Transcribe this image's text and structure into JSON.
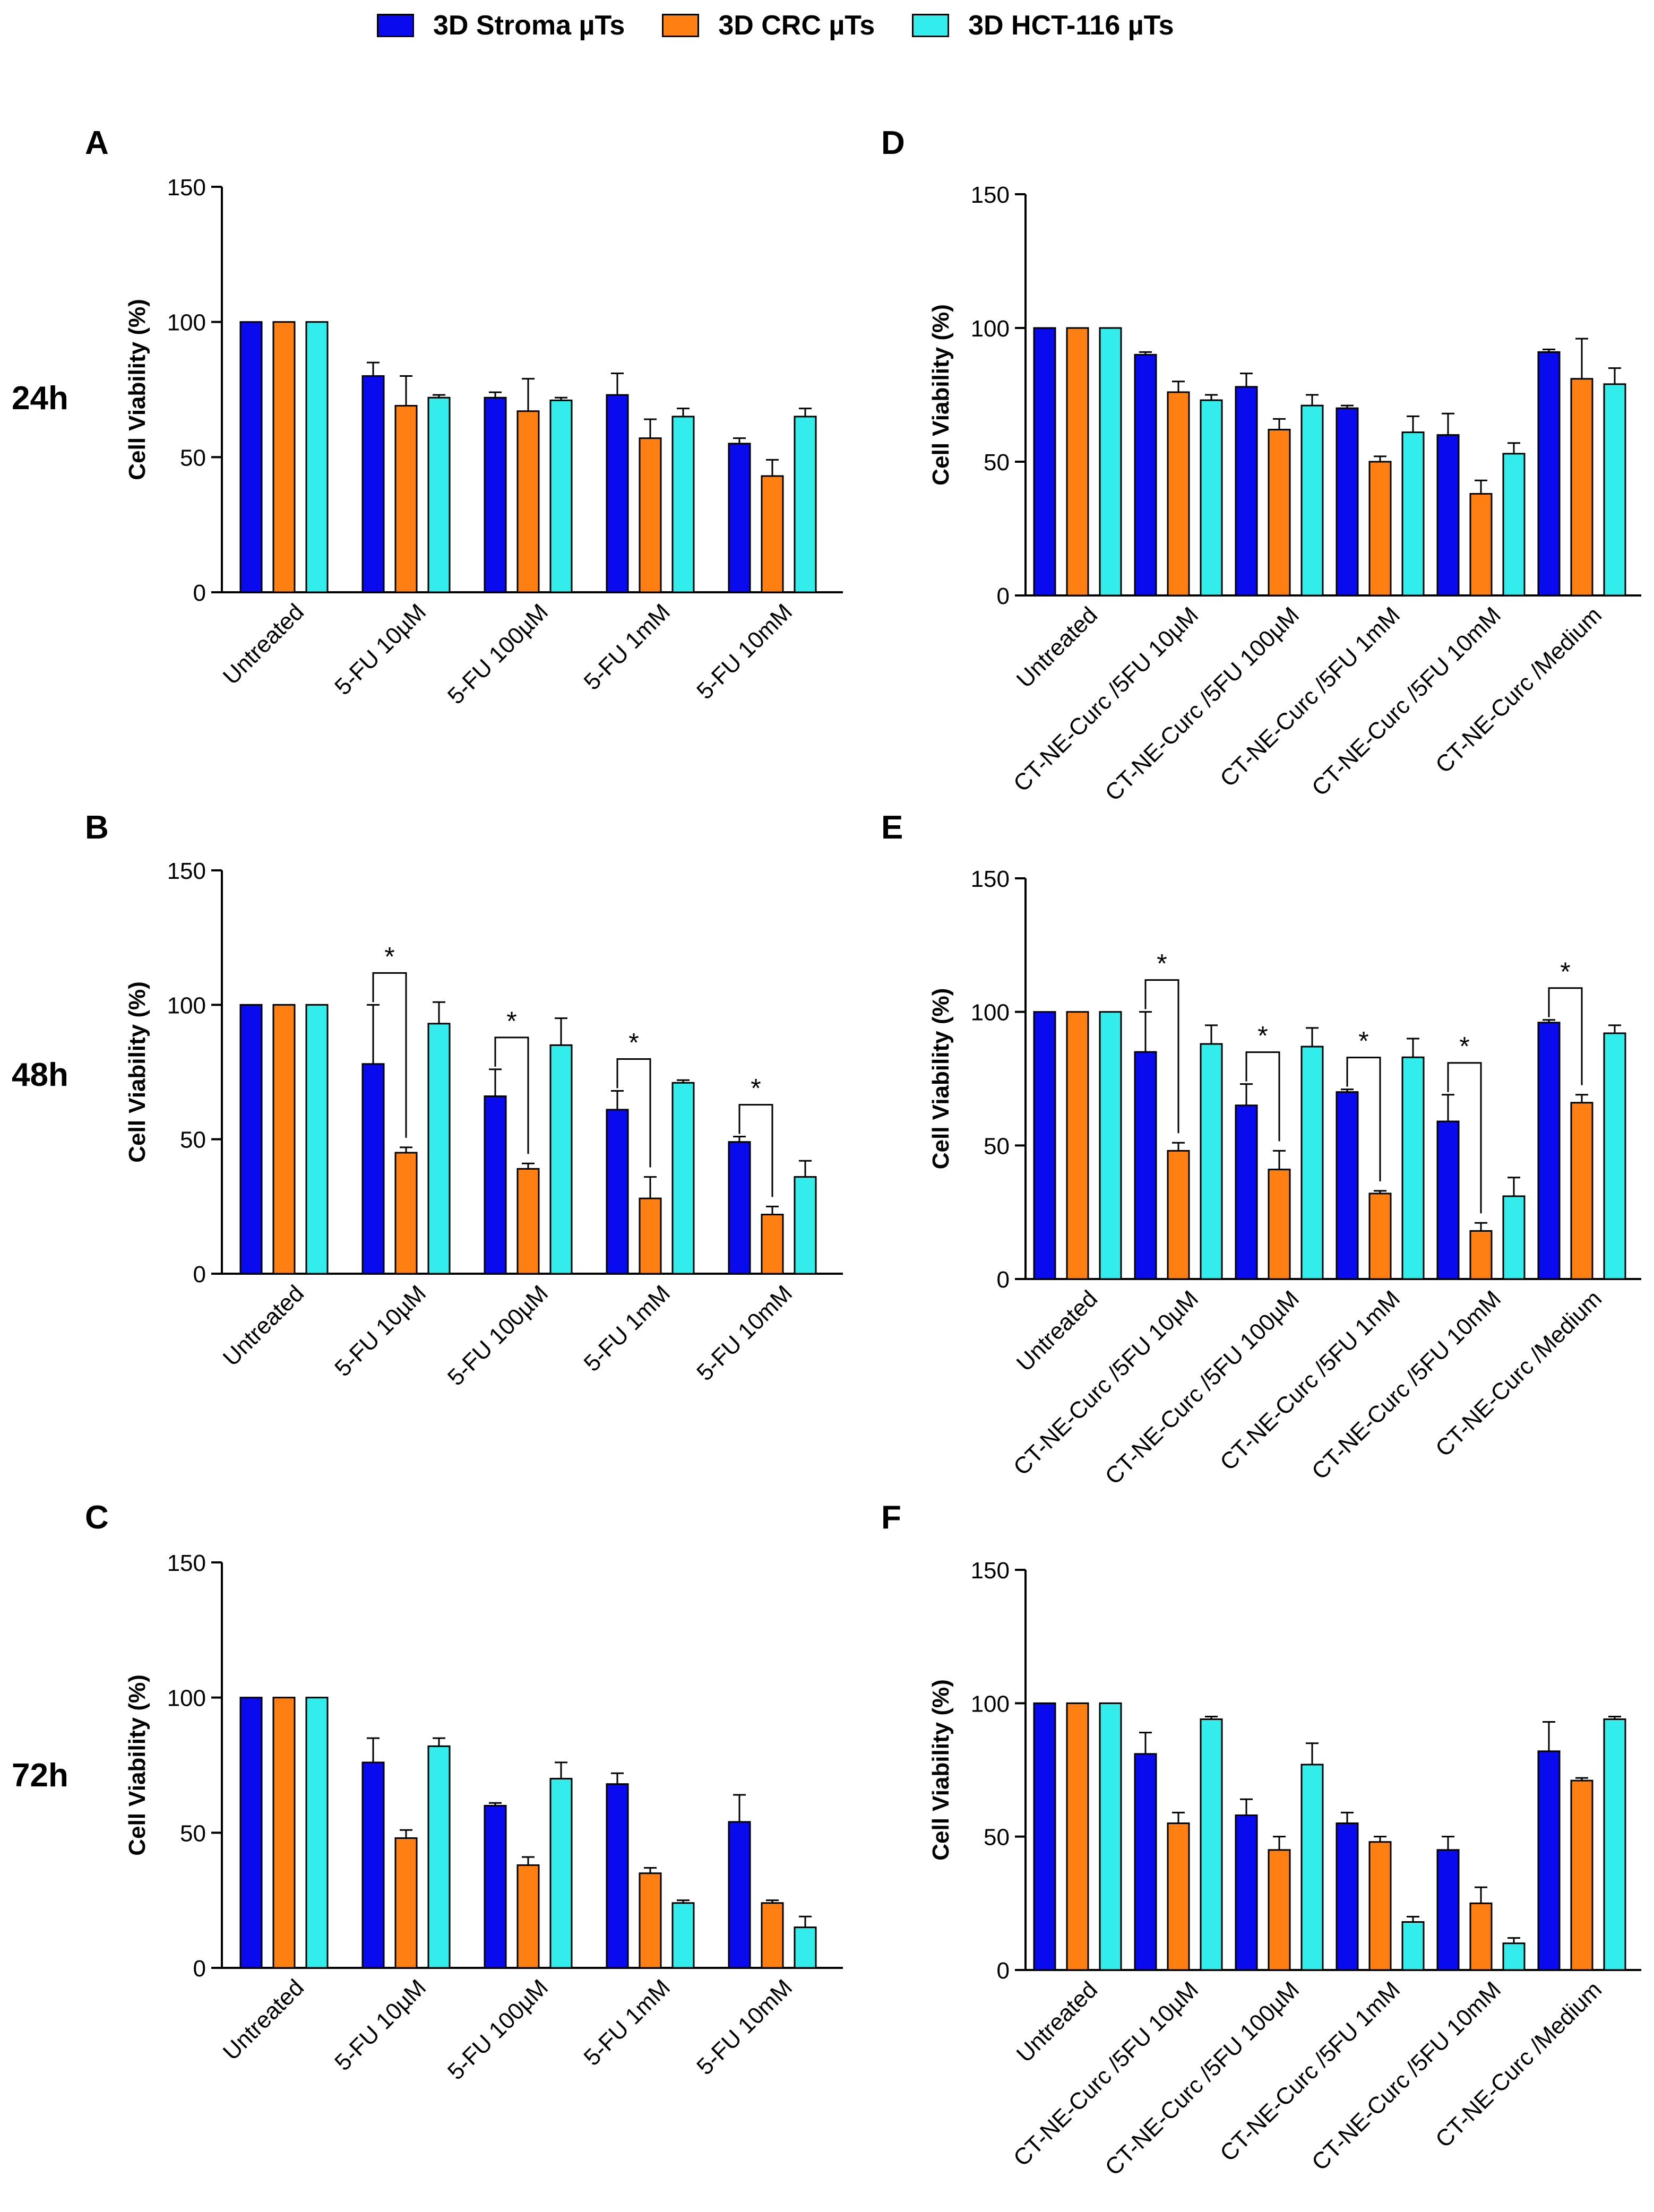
{
  "legend": [
    {
      "name": "3D Stroma µTs",
      "color": "#0a0aef"
    },
    {
      "name": "3D CRC µTs",
      "color": "#ff7f12"
    },
    {
      "name": "3D HCT-116 µTs",
      "color": "#33ecec"
    }
  ],
  "timepoints": [
    "24h",
    "48h",
    "72h"
  ],
  "chart_data": [
    {
      "panel": "A",
      "type": "bar",
      "ylabel": "Cell Viability (%)",
      "ylim": [
        0,
        150
      ],
      "yticks": [
        0,
        50,
        100,
        150
      ],
      "categories": [
        "Untreated",
        "5-FU 10µM",
        "5-FU 100µM",
        "5-FU 1mM",
        "5-FU 10mM"
      ],
      "series": [
        {
          "name": "3D Stroma µTs",
          "values": [
            100,
            80,
            72,
            73,
            55
          ],
          "errors": [
            0,
            5,
            2,
            8,
            2
          ]
        },
        {
          "name": "3D CRC µTs",
          "values": [
            100,
            69,
            67,
            57,
            43
          ],
          "errors": [
            0,
            11,
            12,
            7,
            6
          ]
        },
        {
          "name": "3D HCT-116 µTs",
          "values": [
            100,
            72,
            71,
            65,
            65
          ],
          "errors": [
            0,
            1,
            1,
            3,
            3
          ]
        }
      ],
      "significance": []
    },
    {
      "panel": "B",
      "type": "bar",
      "ylabel": "Cell Viability (%)",
      "ylim": [
        0,
        150
      ],
      "yticks": [
        0,
        50,
        100,
        150
      ],
      "categories": [
        "Untreated",
        "5-FU 10µM",
        "5-FU 100µM",
        "5-FU 1mM",
        "5-FU 10mM"
      ],
      "series": [
        {
          "name": "3D Stroma µTs",
          "values": [
            100,
            78,
            66,
            61,
            49
          ],
          "errors": [
            0,
            22,
            10,
            7,
            2
          ]
        },
        {
          "name": "3D CRC µTs",
          "values": [
            100,
            45,
            39,
            28,
            22
          ],
          "errors": [
            0,
            2,
            2,
            8,
            3
          ]
        },
        {
          "name": "3D HCT-116 µTs",
          "values": [
            100,
            93,
            85,
            71,
            36
          ],
          "errors": [
            0,
            8,
            10,
            1,
            6
          ]
        }
      ],
      "significance": [
        {
          "group": 1,
          "label": "*"
        },
        {
          "group": 2,
          "label": "*"
        },
        {
          "group": 3,
          "label": "*"
        },
        {
          "group": 4,
          "label": "*"
        }
      ]
    },
    {
      "panel": "C",
      "type": "bar",
      "ylabel": "Cell Viability (%)",
      "ylim": [
        0,
        150
      ],
      "yticks": [
        0,
        50,
        100,
        150
      ],
      "categories": [
        "Untreated",
        "5-FU 10µM",
        "5-FU 100µM",
        "5-FU 1mM",
        "5-FU 10mM"
      ],
      "series": [
        {
          "name": "3D Stroma µTs",
          "values": [
            100,
            76,
            60,
            68,
            54
          ],
          "errors": [
            0,
            9,
            1,
            4,
            10
          ]
        },
        {
          "name": "3D CRC µTs",
          "values": [
            100,
            48,
            38,
            35,
            24
          ],
          "errors": [
            0,
            3,
            3,
            2,
            1
          ]
        },
        {
          "name": "3D HCT-116 µTs",
          "values": [
            100,
            82,
            70,
            24,
            15
          ],
          "errors": [
            0,
            3,
            6,
            1,
            4
          ]
        }
      ],
      "significance": []
    },
    {
      "panel": "D",
      "type": "bar",
      "ylabel": "Cell Viability (%)",
      "ylim": [
        0,
        150
      ],
      "yticks": [
        0,
        50,
        100,
        150
      ],
      "categories": [
        "Untreated",
        "CT-NE-Curc /5FU 10µM",
        "CT-NE-Curc /5FU 100µM",
        "CT-NE-Curc /5FU 1mM",
        "CT-NE-Curc /5FU 10mM",
        "CT-NE-Curc /Medium"
      ],
      "series": [
        {
          "name": "3D Stroma µTs",
          "values": [
            100,
            90,
            78,
            70,
            60,
            91
          ],
          "errors": [
            0,
            1,
            5,
            1,
            8,
            1
          ]
        },
        {
          "name": "3D CRC µTs",
          "values": [
            100,
            76,
            62,
            50,
            38,
            81
          ],
          "errors": [
            0,
            4,
            4,
            2,
            5,
            15
          ]
        },
        {
          "name": "3D HCT-116 µTs",
          "values": [
            100,
            73,
            71,
            61,
            53,
            79
          ],
          "errors": [
            0,
            2,
            4,
            6,
            4,
            6
          ]
        }
      ],
      "significance": []
    },
    {
      "panel": "E",
      "type": "bar",
      "ylabel": "Cell Viability (%)",
      "ylim": [
        0,
        150
      ],
      "yticks": [
        0,
        50,
        100,
        150
      ],
      "categories": [
        "Untreated",
        "CT-NE-Curc /5FU 10µM",
        "CT-NE-Curc /5FU 100µM",
        "CT-NE-Curc /5FU 1mM",
        "CT-NE-Curc /5FU 10mM",
        "CT-NE-Curc /Medium"
      ],
      "series": [
        {
          "name": "3D Stroma µTs",
          "values": [
            100,
            85,
            65,
            70,
            59,
            96
          ],
          "errors": [
            0,
            15,
            8,
            1,
            10,
            1
          ]
        },
        {
          "name": "3D CRC µTs",
          "values": [
            100,
            48,
            41,
            32,
            18,
            66
          ],
          "errors": [
            0,
            3,
            7,
            1,
            3,
            3
          ]
        },
        {
          "name": "3D HCT-116 µTs",
          "values": [
            100,
            88,
            87,
            83,
            31,
            92
          ],
          "errors": [
            0,
            7,
            7,
            7,
            7,
            3
          ]
        }
      ],
      "significance": [
        {
          "group": 1,
          "label": "*"
        },
        {
          "group": 2,
          "label": "*"
        },
        {
          "group": 3,
          "label": "*"
        },
        {
          "group": 4,
          "label": "*"
        },
        {
          "group": 5,
          "label": "*"
        }
      ]
    },
    {
      "panel": "F",
      "type": "bar",
      "ylabel": "Cell Viability (%)",
      "ylim": [
        0,
        150
      ],
      "yticks": [
        0,
        50,
        100,
        150
      ],
      "categories": [
        "Untreated",
        "CT-NE-Curc /5FU 10µM",
        "CT-NE-Curc /5FU 100µM",
        "CT-NE-Curc /5FU 1mM",
        "CT-NE-Curc /5FU 10mM",
        "CT-NE-Curc /Medium"
      ],
      "series": [
        {
          "name": "3D Stroma µTs",
          "values": [
            100,
            81,
            58,
            55,
            45,
            82
          ],
          "errors": [
            0,
            8,
            6,
            4,
            5,
            11
          ]
        },
        {
          "name": "3D CRC µTs",
          "values": [
            100,
            55,
            45,
            48,
            25,
            71
          ],
          "errors": [
            0,
            4,
            5,
            2,
            6,
            1
          ]
        },
        {
          "name": "3D HCT-116 µTs",
          "values": [
            100,
            94,
            77,
            18,
            10,
            94
          ],
          "errors": [
            0,
            1,
            8,
            2,
            2,
            1
          ]
        }
      ],
      "significance": []
    }
  ]
}
